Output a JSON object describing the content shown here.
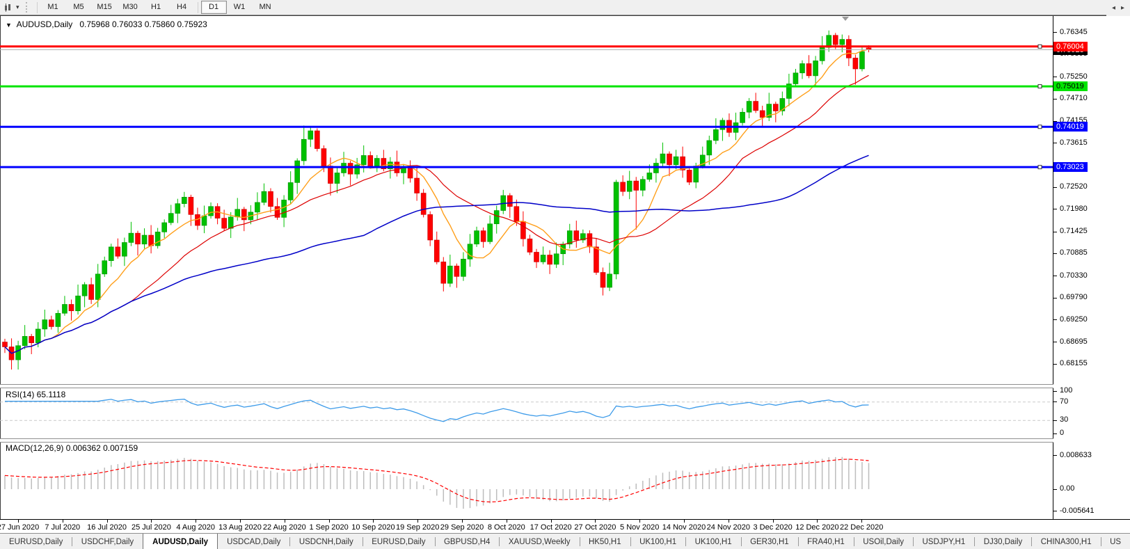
{
  "toolbar": {
    "chart_tool_icon": "chart-mode-icon",
    "dropdown_caret": "▾",
    "timeframes": [
      {
        "label": "M1",
        "active": false
      },
      {
        "label": "M5",
        "active": false
      },
      {
        "label": "M15",
        "active": false
      },
      {
        "label": "M30",
        "active": false
      },
      {
        "label": "H1",
        "active": false
      },
      {
        "label": "H4",
        "active": false
      },
      {
        "label": "D1",
        "active": true
      },
      {
        "label": "W1",
        "active": false
      },
      {
        "label": "MN",
        "active": false
      }
    ]
  },
  "chart_header": {
    "symbol_caret": "▼",
    "title": "AUDUSD,Daily",
    "ohlc": "0.75968 0.76033 0.75860 0.75923"
  },
  "price_axis": {
    "ticks": [
      "0.76345",
      "0.75805",
      "0.75250",
      "0.74710",
      "0.74155",
      "0.73615",
      "0.72520",
      "0.71980",
      "0.71425",
      "0.70885",
      "0.70330",
      "0.69790",
      "0.69250",
      "0.68695",
      "0.68155"
    ],
    "badges": [
      {
        "value": "0.75923",
        "bg": "#000000",
        "fg": "#ffffff",
        "name": "current-price-badge"
      },
      {
        "value": "0.76004",
        "bg": "#ff0000",
        "fg": "#ffffff",
        "name": "resistance-line-badge"
      },
      {
        "value": "0.75019",
        "bg": "#00e400",
        "fg": "#000000",
        "name": "support-line-badge"
      },
      {
        "value": "0.74019",
        "bg": "#0000ff",
        "fg": "#ffffff",
        "name": "blue-line-1-badge"
      },
      {
        "value": "0.73023",
        "bg": "#0000ff",
        "fg": "#ffffff",
        "name": "blue-line-2-badge"
      }
    ]
  },
  "rsi_panel": {
    "label": "RSI(14) 65.1118",
    "ticks": [
      "100",
      "70",
      "30",
      "0"
    ],
    "line_color": "#3d9be9",
    "level_color": "#c9c9c9"
  },
  "macd_panel": {
    "label": "MACD(12,26,9) 0.006362 0.007159",
    "ticks": [
      "0.008633",
      "0.00",
      "-0.005641"
    ],
    "histogram_color": "#bdbdbd",
    "signal_color": "#ff0000"
  },
  "date_axis": {
    "labels": [
      "27 Jun 2020",
      "7 Jul 2020",
      "16 Jul 2020",
      "25 Jul 2020",
      "4 Aug 2020",
      "13 Aug 2020",
      "22 Aug 2020",
      "1 Sep 2020",
      "10 Sep 2020",
      "19 Sep 2020",
      "29 Sep 2020",
      "8 Oct 2020",
      "17 Oct 2020",
      "27 Oct 2020",
      "5 Nov 2020",
      "14 Nov 2020",
      "24 Nov 2020",
      "3 Dec 2020",
      "12 Dec 2020",
      "22 Dec 2020"
    ]
  },
  "tabs": {
    "items": [
      {
        "label": "EURUSD,Daily",
        "active": false
      },
      {
        "label": "USDCHF,Daily",
        "active": false
      },
      {
        "label": "AUDUSD,Daily",
        "active": true
      },
      {
        "label": "USDCAD,Daily",
        "active": false
      },
      {
        "label": "USDCNH,Daily",
        "active": false
      },
      {
        "label": "EURUSD,Daily",
        "active": false
      },
      {
        "label": "GBPUSD,H4",
        "active": false
      },
      {
        "label": "XAUUSD,Weekly",
        "active": false
      },
      {
        "label": "HK50,H1",
        "active": false
      },
      {
        "label": "UK100,H1",
        "active": false
      },
      {
        "label": "UK100,H1",
        "active": false
      },
      {
        "label": "GER30,H1",
        "active": false
      },
      {
        "label": "FRA40,H1",
        "active": false
      },
      {
        "label": "USOil,Daily",
        "active": false
      },
      {
        "label": "USDJPY,H1",
        "active": false
      },
      {
        "label": "DJ30,Daily",
        "active": false
      },
      {
        "label": "CHINA300,H1",
        "active": false
      },
      {
        "label": "US",
        "active": false
      }
    ],
    "scroll_left_icon": "◂",
    "scroll_right_icon": "▸"
  },
  "chart_data": {
    "type": "candlestick",
    "symbol": "AUDUSD",
    "timeframe": "Daily",
    "quote": {
      "open": 0.75968,
      "high": 0.76033,
      "low": 0.7586,
      "close": 0.75923
    },
    "price_range": {
      "top": 0.7674,
      "bottom": 0.6766
    },
    "colors": {
      "up": "#00c000",
      "up_border": "#009300",
      "down": "#fe0000",
      "down_border": "#c80000"
    },
    "moving_averages": [
      {
        "period": 8,
        "color": "#ff9f1a",
        "width": 1.4
      },
      {
        "period": 20,
        "color": "#dd0000",
        "width": 1.2
      },
      {
        "period": 55,
        "color": "#0000c8",
        "width": 1.5
      }
    ],
    "hlines": [
      {
        "value": 0.76004,
        "color": "#ff0000",
        "width": 3
      },
      {
        "value": 0.75019,
        "color": "#00e400",
        "width": 3
      },
      {
        "value": 0.74019,
        "color": "#0000ff",
        "width": 3
      },
      {
        "value": 0.73023,
        "color": "#0000ff",
        "width": 3
      }
    ],
    "current_price_line": {
      "value": 0.75923,
      "color": "#b0b0b0",
      "width": 1
    },
    "rsi": {
      "period": 14,
      "value_shown": 65.1118,
      "range": [
        0,
        100
      ],
      "levels": [
        70,
        30
      ]
    },
    "macd": {
      "fast": 12,
      "slow": 26,
      "signal": 9,
      "values_shown": [
        0.006362,
        0.007159
      ],
      "axis": [
        -0.005641,
        0.008633
      ]
    },
    "candles": [
      [
        0.687,
        0.6878,
        0.6843,
        0.6858
      ],
      [
        0.6858,
        0.6879,
        0.6802,
        0.6826
      ],
      [
        0.6826,
        0.6873,
        0.6802,
        0.6861
      ],
      [
        0.6861,
        0.6912,
        0.6852,
        0.6884
      ],
      [
        0.6884,
        0.689,
        0.684,
        0.6868
      ],
      [
        0.6868,
        0.6919,
        0.6857,
        0.6902
      ],
      [
        0.6902,
        0.695,
        0.6883,
        0.6925
      ],
      [
        0.6925,
        0.6935,
        0.6901,
        0.6908
      ],
      [
        0.6908,
        0.6949,
        0.6893,
        0.6941
      ],
      [
        0.6941,
        0.6984,
        0.6935,
        0.6963
      ],
      [
        0.6963,
        0.6975,
        0.6923,
        0.6947
      ],
      [
        0.6947,
        0.7012,
        0.6938,
        0.6984
      ],
      [
        0.6984,
        0.7018,
        0.6956,
        0.7012
      ],
      [
        0.7012,
        0.7029,
        0.6964,
        0.6975
      ],
      [
        0.6975,
        0.7063,
        0.6956,
        0.7038
      ],
      [
        0.7038,
        0.7081,
        0.7031,
        0.7071
      ],
      [
        0.7071,
        0.7113,
        0.7056,
        0.7105
      ],
      [
        0.7105,
        0.7126,
        0.7076,
        0.7082
      ],
      [
        0.7082,
        0.7128,
        0.7058,
        0.7116
      ],
      [
        0.7116,
        0.7167,
        0.7107,
        0.7139
      ],
      [
        0.7139,
        0.7145,
        0.7084,
        0.7112
      ],
      [
        0.7112,
        0.7151,
        0.7101,
        0.7134
      ],
      [
        0.7134,
        0.7159,
        0.7089,
        0.7108
      ],
      [
        0.7108,
        0.7152,
        0.7101,
        0.7142
      ],
      [
        0.7142,
        0.7173,
        0.7127,
        0.7165
      ],
      [
        0.7165,
        0.7209,
        0.7159,
        0.7188
      ],
      [
        0.7188,
        0.7224,
        0.7164,
        0.7212
      ],
      [
        0.7212,
        0.7241,
        0.7203,
        0.7228
      ],
      [
        0.7228,
        0.7234,
        0.7157,
        0.7185
      ],
      [
        0.7185,
        0.7202,
        0.7147,
        0.7158
      ],
      [
        0.7158,
        0.7207,
        0.7139,
        0.7182
      ],
      [
        0.7182,
        0.7215,
        0.7175,
        0.7205
      ],
      [
        0.7205,
        0.7213,
        0.7161,
        0.7176
      ],
      [
        0.7176,
        0.7197,
        0.7145,
        0.7151
      ],
      [
        0.7151,
        0.7191,
        0.7127,
        0.7179
      ],
      [
        0.7179,
        0.7226,
        0.717,
        0.7198
      ],
      [
        0.7198,
        0.7204,
        0.7144,
        0.7172
      ],
      [
        0.7172,
        0.7208,
        0.7161,
        0.7191
      ],
      [
        0.7191,
        0.724,
        0.7172,
        0.7215
      ],
      [
        0.7215,
        0.7262,
        0.7208,
        0.7242
      ],
      [
        0.7242,
        0.725,
        0.719,
        0.7205
      ],
      [
        0.7205,
        0.7226,
        0.7172,
        0.7178
      ],
      [
        0.7178,
        0.7233,
        0.7154,
        0.7221
      ],
      [
        0.7221,
        0.7292,
        0.7212,
        0.7264
      ],
      [
        0.7264,
        0.7324,
        0.7236,
        0.7318
      ],
      [
        0.7318,
        0.7405,
        0.7307,
        0.7371
      ],
      [
        0.7371,
        0.7401,
        0.7352,
        0.7392
      ],
      [
        0.7392,
        0.7398,
        0.7341,
        0.7348
      ],
      [
        0.7348,
        0.7356,
        0.729,
        0.7305
      ],
      [
        0.7305,
        0.7326,
        0.7232,
        0.7262
      ],
      [
        0.7262,
        0.73,
        0.7238,
        0.7288
      ],
      [
        0.7288,
        0.734,
        0.7279,
        0.7312
      ],
      [
        0.7312,
        0.7318,
        0.7257,
        0.7285
      ],
      [
        0.7285,
        0.7325,
        0.7274,
        0.7308
      ],
      [
        0.7308,
        0.7356,
        0.7289,
        0.7331
      ],
      [
        0.7331,
        0.7341,
        0.7298,
        0.7305
      ],
      [
        0.7305,
        0.7332,
        0.729,
        0.7324
      ],
      [
        0.7324,
        0.7345,
        0.7292,
        0.7298
      ],
      [
        0.7298,
        0.7327,
        0.7274,
        0.7315
      ],
      [
        0.7315,
        0.7343,
        0.7279,
        0.7288
      ],
      [
        0.7288,
        0.7308,
        0.726,
        0.7302
      ],
      [
        0.7302,
        0.7319,
        0.7264,
        0.7275
      ],
      [
        0.7275,
        0.73,
        0.7219,
        0.7238
      ],
      [
        0.7238,
        0.7248,
        0.7178,
        0.7185
      ],
      [
        0.7185,
        0.7193,
        0.7107,
        0.7122
      ],
      [
        0.7122,
        0.7143,
        0.7062,
        0.7068
      ],
      [
        0.7068,
        0.708,
        0.6995,
        0.7015
      ],
      [
        0.7015,
        0.7086,
        0.7006,
        0.7058
      ],
      [
        0.7058,
        0.7064,
        0.7004,
        0.7032
      ],
      [
        0.7032,
        0.7092,
        0.7021,
        0.7075
      ],
      [
        0.7075,
        0.7137,
        0.7056,
        0.7112
      ],
      [
        0.7112,
        0.7155,
        0.7105,
        0.7145
      ],
      [
        0.7145,
        0.7153,
        0.7103,
        0.7118
      ],
      [
        0.7118,
        0.7183,
        0.7112,
        0.7162
      ],
      [
        0.7162,
        0.7207,
        0.7138,
        0.7195
      ],
      [
        0.7195,
        0.7246,
        0.7186,
        0.7232
      ],
      [
        0.7232,
        0.7238,
        0.7177,
        0.7205
      ],
      [
        0.7205,
        0.7222,
        0.7157,
        0.7168
      ],
      [
        0.7168,
        0.7193,
        0.7106,
        0.7125
      ],
      [
        0.7125,
        0.7135,
        0.7085,
        0.7092
      ],
      [
        0.7092,
        0.71,
        0.7053,
        0.7068
      ],
      [
        0.7068,
        0.7106,
        0.7062,
        0.7085
      ],
      [
        0.7085,
        0.7097,
        0.7038,
        0.7062
      ],
      [
        0.7062,
        0.7116,
        0.7053,
        0.7088
      ],
      [
        0.7088,
        0.7118,
        0.706,
        0.7112
      ],
      [
        0.7112,
        0.7162,
        0.7101,
        0.7145
      ],
      [
        0.7145,
        0.717,
        0.7103,
        0.7122
      ],
      [
        0.7122,
        0.7148,
        0.7115,
        0.7138
      ],
      [
        0.7138,
        0.7146,
        0.709,
        0.7105
      ],
      [
        0.7105,
        0.7126,
        0.7036,
        0.7042
      ],
      [
        0.7042,
        0.7054,
        0.6985,
        0.7005
      ],
      [
        0.7005,
        0.7066,
        0.6996,
        0.7038
      ],
      [
        0.7038,
        0.7271,
        0.7025,
        0.7265
      ],
      [
        0.7265,
        0.7282,
        0.7231,
        0.7242
      ],
      [
        0.7242,
        0.7293,
        0.7223,
        0.7268
      ],
      [
        0.7268,
        0.7278,
        0.7148,
        0.7245
      ],
      [
        0.7245,
        0.728,
        0.723,
        0.7272
      ],
      [
        0.7272,
        0.7309,
        0.7266,
        0.7288
      ],
      [
        0.7288,
        0.7324,
        0.7264,
        0.7312
      ],
      [
        0.7312,
        0.7363,
        0.7303,
        0.7335
      ],
      [
        0.7335,
        0.7341,
        0.728,
        0.7308
      ],
      [
        0.7308,
        0.7345,
        0.7297,
        0.7328
      ],
      [
        0.7328,
        0.7353,
        0.7276,
        0.7295
      ],
      [
        0.7295,
        0.7305,
        0.7258,
        0.7265
      ],
      [
        0.7265,
        0.7313,
        0.725,
        0.7305
      ],
      [
        0.7305,
        0.7353,
        0.7299,
        0.7332
      ],
      [
        0.7332,
        0.738,
        0.7308,
        0.7368
      ],
      [
        0.7368,
        0.7423,
        0.7359,
        0.7395
      ],
      [
        0.7395,
        0.7424,
        0.7367,
        0.7418
      ],
      [
        0.7418,
        0.7435,
        0.7377,
        0.7388
      ],
      [
        0.7388,
        0.7437,
        0.7369,
        0.7412
      ],
      [
        0.7412,
        0.7448,
        0.7405,
        0.7438
      ],
      [
        0.7438,
        0.7473,
        0.7423,
        0.7465
      ],
      [
        0.7465,
        0.7486,
        0.7436,
        0.7442
      ],
      [
        0.7442,
        0.7454,
        0.7401,
        0.7425
      ],
      [
        0.7425,
        0.7486,
        0.7416,
        0.7458
      ],
      [
        0.7458,
        0.7464,
        0.7413,
        0.7441
      ],
      [
        0.7441,
        0.7489,
        0.743,
        0.7472
      ],
      [
        0.7472,
        0.7533,
        0.7453,
        0.7508
      ],
      [
        0.7508,
        0.7545,
        0.7501,
        0.7535
      ],
      [
        0.7535,
        0.7566,
        0.752,
        0.7558
      ],
      [
        0.7558,
        0.7579,
        0.7522,
        0.7528
      ],
      [
        0.7528,
        0.7577,
        0.7504,
        0.7565
      ],
      [
        0.7565,
        0.7626,
        0.7556,
        0.7598
      ],
      [
        0.7598,
        0.764,
        0.7587,
        0.7628
      ],
      [
        0.7628,
        0.7634,
        0.7594,
        0.7605
      ],
      [
        0.7605,
        0.763,
        0.7586,
        0.7618
      ],
      [
        0.7618,
        0.7628,
        0.7552,
        0.7572
      ],
      [
        0.7572,
        0.758,
        0.7506,
        0.7545
      ],
      [
        0.7545,
        0.7598,
        0.7539,
        0.7588
      ],
      [
        0.75968,
        0.76033,
        0.7586,
        0.75923
      ]
    ]
  }
}
